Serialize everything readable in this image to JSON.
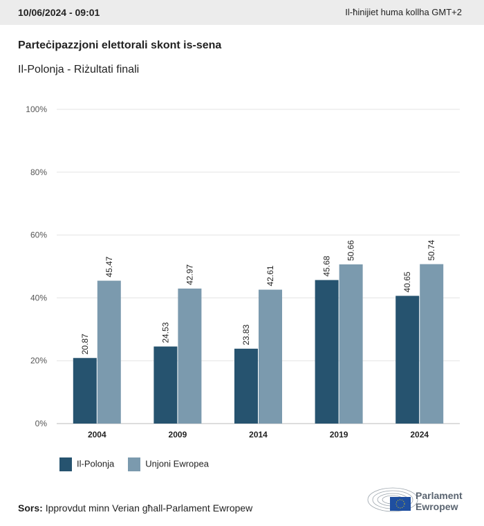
{
  "header": {
    "date": "10/06/2024 - 09:01",
    "timezone": "Il-ħinijiet huma kollha GMT+2"
  },
  "chart_data": {
    "type": "bar",
    "title": "Parteċipazzjoni elettorali skont is-sena",
    "subtitle": "Il-Polonja - Riżultati finali",
    "categories": [
      "2004",
      "2009",
      "2014",
      "2019",
      "2024"
    ],
    "series": [
      {
        "name": "Il-Polonja",
        "color": "#26536f",
        "values": [
          20.87,
          24.53,
          23.83,
          45.68,
          40.65
        ]
      },
      {
        "name": "Unjoni Ewropea",
        "color": "#7b9aae",
        "values": [
          45.47,
          42.97,
          42.61,
          50.66,
          50.74
        ]
      }
    ],
    "ylim": [
      0,
      100
    ],
    "yticks": [
      "0%",
      "20%",
      "40%",
      "60%",
      "80%",
      "100%"
    ],
    "grid": true,
    "legend": "bottom-left"
  },
  "footer": {
    "source_label": "Sors:",
    "source_text": "Ipprovdut minn Verian għall-Parlament Ewropew",
    "logo_line1": "Parlament",
    "logo_line2": "Ewropew"
  }
}
